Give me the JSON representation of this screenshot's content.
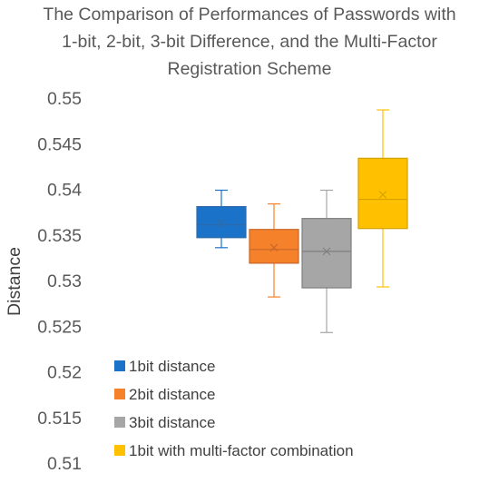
{
  "chart_data": {
    "type": "box",
    "title_lines": [
      "The Comparison of Performances of Passwords with",
      "1-bit, 2-bit, 3-bit Difference, and the Multi-Factor",
      "Registration Scheme"
    ],
    "xlabel": "",
    "ylabel": "Distance",
    "ylim": [
      0.51,
      0.55
    ],
    "yticks": [
      "0.51",
      "0.515",
      "0.52",
      "0.525",
      "0.53",
      "0.535",
      "0.54",
      "0.545",
      "0.55"
    ],
    "grid": false,
    "legend_position": "bottom-left",
    "series": [
      {
        "name": "1bit distance",
        "color": "#1a73c8",
        "edge": "#2e6aa8",
        "min": 0.5336,
        "q1": 0.5347,
        "median": 0.5361,
        "q3": 0.5381,
        "max": 0.5399,
        "mean": 0.5363
      },
      {
        "name": "2bit distance",
        "color": "#f5822a",
        "edge": "#c8662a",
        "min": 0.5282,
        "q1": 0.5319,
        "median": 0.5334,
        "q3": 0.5356,
        "max": 0.5384,
        "mean": 0.5336
      },
      {
        "name": "3bit distance",
        "color": "#a6a6a6",
        "edge": "#7f7f7f",
        "min": 0.5243,
        "q1": 0.5292,
        "median": 0.5332,
        "q3": 0.5368,
        "max": 0.5399,
        "mean": 0.5332
      },
      {
        "name": "1bit with multi-factor combination",
        "color": "#ffc000",
        "edge": "#d4a100",
        "min": 0.5293,
        "q1": 0.5357,
        "median": 0.5389,
        "q3": 0.5434,
        "max": 0.5487,
        "mean": 0.5394
      }
    ]
  }
}
